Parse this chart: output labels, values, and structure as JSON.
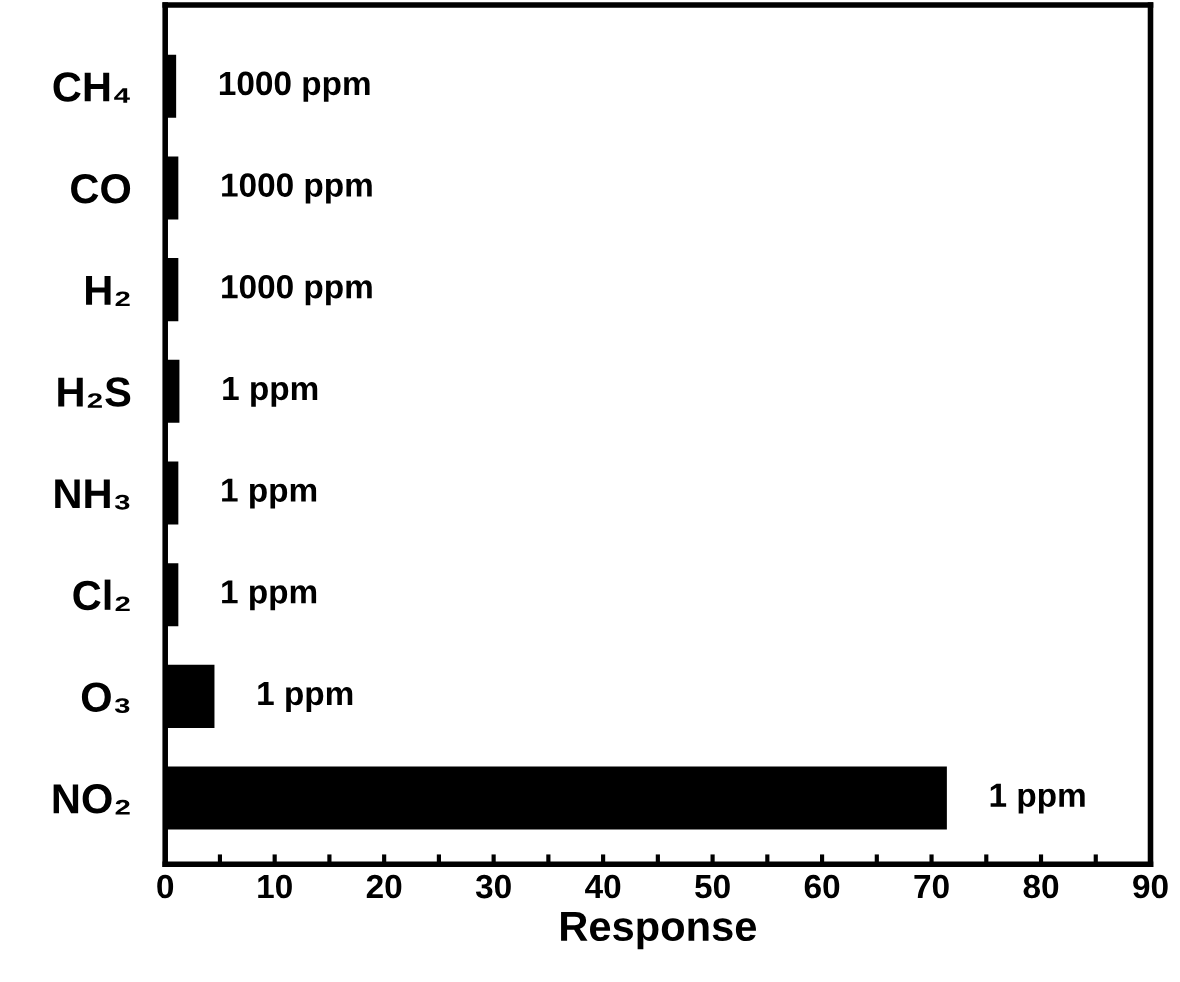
{
  "chart_data": {
    "type": "bar",
    "orientation": "horizontal",
    "xlabel": "Response",
    "categories": [
      "CH₄",
      "CO",
      "H₂",
      "H₂S",
      "NH₃",
      "Cl₂",
      "O₃",
      "NO₂"
    ],
    "values": [
      1.0,
      1.2,
      1.2,
      1.3,
      1.2,
      1.2,
      4.5,
      71.4
    ],
    "annotations": [
      {
        "text": "1000 ppm",
        "x": 1.0,
        "y": "CH₄"
      },
      {
        "text": "1000 ppm",
        "x": 1.2,
        "y": "CO"
      },
      {
        "text": "1000 ppm",
        "x": 1.2,
        "y": "H₂"
      },
      {
        "text": "1 ppm",
        "x": 1.3,
        "y": "H₂S"
      },
      {
        "text": "1 ppm",
        "x": 1.2,
        "y": "NH₃"
      },
      {
        "text": "1 ppm",
        "x": 1.2,
        "y": "Cl₂"
      },
      {
        "text": "1 ppm",
        "x": 4.5,
        "y": "O₃"
      },
      {
        "text": "1 ppm",
        "x": 71.4,
        "y": "NO₂"
      }
    ],
    "color": "#000000",
    "xlim": [
      0,
      90
    ],
    "xticks": [
      0,
      {
        "value": 5,
        "label": null
      },
      10,
      {
        "value": 15,
        "label": null
      },
      20,
      {
        "value": 25,
        "label": null
      },
      30,
      {
        "value": 35,
        "label": null
      },
      40,
      {
        "value": 45,
        "label": null
      },
      50,
      {
        "value": 55,
        "label": null
      },
      60,
      {
        "value": 65,
        "label": null
      },
      70,
      {
        "value": 75,
        "label": null
      },
      80,
      {
        "value": 85,
        "label": null
      },
      90
    ],
    "grid": false
  }
}
